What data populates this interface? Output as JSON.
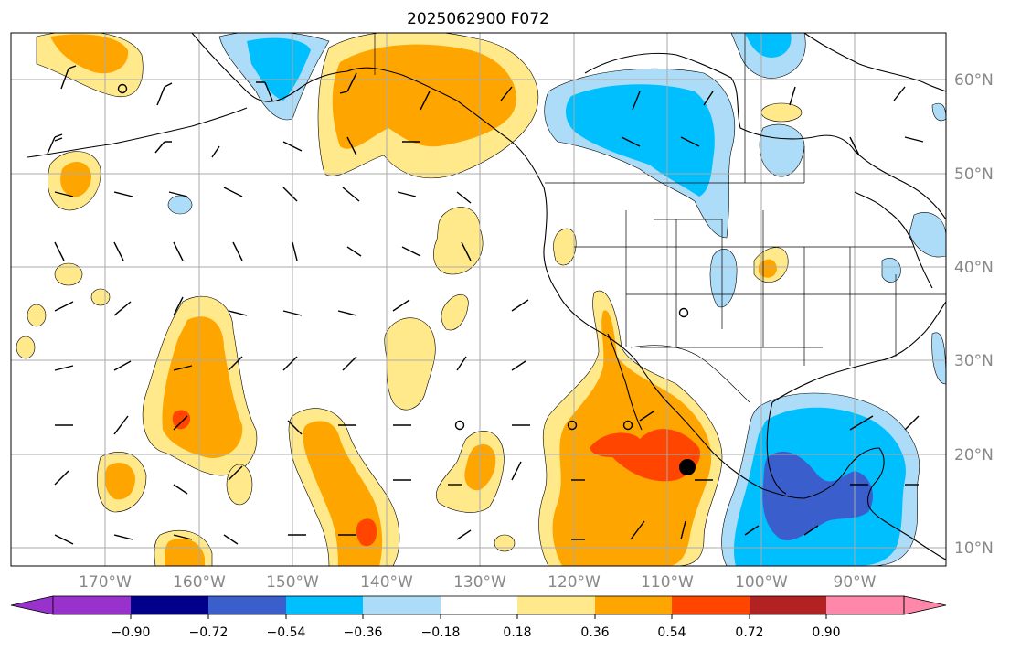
{
  "title": "2025062900 F072",
  "lon_labels": [
    "170°W",
    "160°W",
    "150°W",
    "140°W",
    "130°W",
    "120°W",
    "110°W",
    "100°W",
    "90°W"
  ],
  "lat_labels": [
    "60°N",
    "50°N",
    "40°N",
    "30°N",
    "20°N",
    "10°N"
  ],
  "colorbar": {
    "colors": [
      "#9932CC",
      "#00008B",
      "#3A5FCD",
      "#00BFFF",
      "#ADDCF8",
      "#FFFFFF",
      "#FFE98A",
      "#FFA500",
      "#FF4500",
      "#B22222",
      "#FF88AA"
    ],
    "labels": [
      "−0.90",
      "−0.72",
      "−0.54",
      "−0.36",
      "−0.18",
      "0.18",
      "0.36",
      "0.54",
      "0.72",
      "0.90"
    ]
  }
}
